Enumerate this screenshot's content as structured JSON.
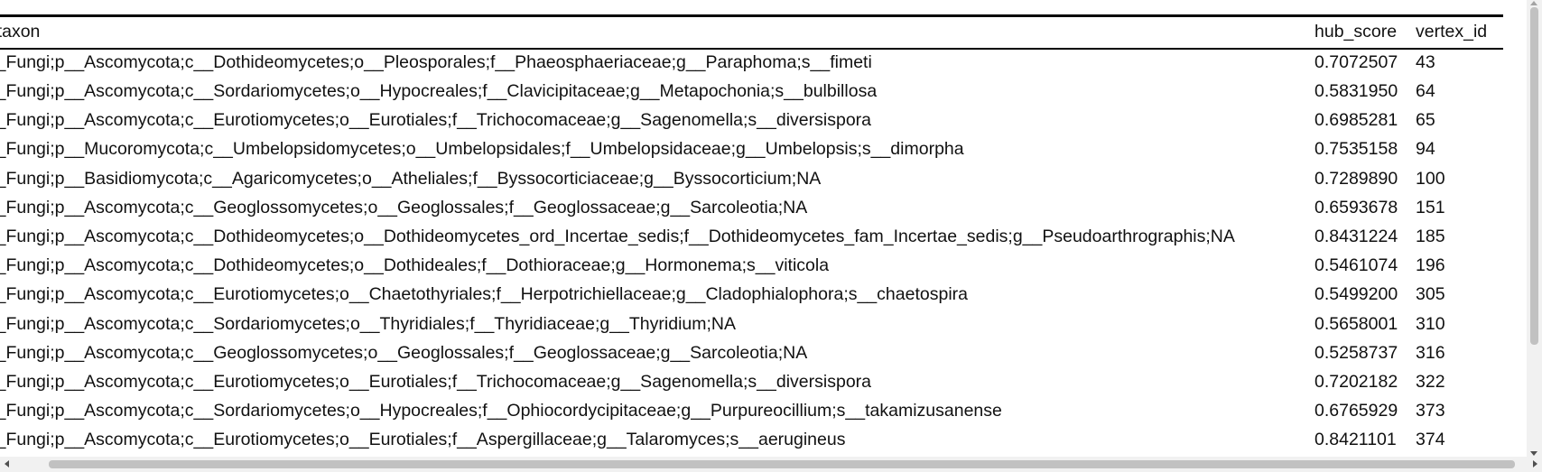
{
  "table": {
    "columns": [
      "p_taxon",
      "hub_score",
      "vertex_id"
    ],
    "rows": [
      {
        "taxon": "k__Fungi;p__Ascomycota;c__Dothideomycetes;o__Pleosporales;f__Phaeosphaeriaceae;g__Paraphoma;s__fimeti",
        "hub_score": "0.7072507",
        "vertex_id": "43"
      },
      {
        "taxon": "k__Fungi;p__Ascomycota;c__Sordariomycetes;o__Hypocreales;f__Clavicipitaceae;g__Metapochonia;s__bulbillosa",
        "hub_score": "0.5831950",
        "vertex_id": "64"
      },
      {
        "taxon": "k__Fungi;p__Ascomycota;c__Eurotiomycetes;o__Eurotiales;f__Trichocomaceae;g__Sagenomella;s__diversispora",
        "hub_score": "0.6985281",
        "vertex_id": "65"
      },
      {
        "taxon": "k__Fungi;p__Mucoromycota;c__Umbelopsidomycetes;o__Umbelopsidales;f__Umbelopsidaceae;g__Umbelopsis;s__dimorpha",
        "hub_score": "0.7535158",
        "vertex_id": "94"
      },
      {
        "taxon": "k__Fungi;p__Basidiomycota;c__Agaricomycetes;o__Atheliales;f__Byssocorticiaceae;g__Byssocorticium;NA",
        "hub_score": "0.7289890",
        "vertex_id": "100"
      },
      {
        "taxon": "k__Fungi;p__Ascomycota;c__Geoglossomycetes;o__Geoglossales;f__Geoglossaceae;g__Sarcoleotia;NA",
        "hub_score": "0.6593678",
        "vertex_id": "151"
      },
      {
        "taxon": "k__Fungi;p__Ascomycota;c__Dothideomycetes;o__Dothideomycetes_ord_Incertae_sedis;f__Dothideomycetes_fam_Incertae_sedis;g__Pseudoarthrographis;NA",
        "hub_score": "0.8431224",
        "vertex_id": "185"
      },
      {
        "taxon": "k__Fungi;p__Ascomycota;c__Dothideomycetes;o__Dothideales;f__Dothioraceae;g__Hormonema;s__viticola",
        "hub_score": "0.5461074",
        "vertex_id": "196"
      },
      {
        "taxon": "k__Fungi;p__Ascomycota;c__Eurotiomycetes;o__Chaetothyriales;f__Herpotrichiellaceae;g__Cladophialophora;s__chaetospira",
        "hub_score": "0.5499200",
        "vertex_id": "305"
      },
      {
        "taxon": "k__Fungi;p__Ascomycota;c__Sordariomycetes;o__Thyridiales;f__Thyridiaceae;g__Thyridium;NA",
        "hub_score": "0.5658001",
        "vertex_id": "310"
      },
      {
        "taxon": "k__Fungi;p__Ascomycota;c__Geoglossomycetes;o__Geoglossales;f__Geoglossaceae;g__Sarcoleotia;NA",
        "hub_score": "0.5258737",
        "vertex_id": "316"
      },
      {
        "taxon": "k__Fungi;p__Ascomycota;c__Eurotiomycetes;o__Eurotiales;f__Trichocomaceae;g__Sagenomella;s__diversispora",
        "hub_score": "0.7202182",
        "vertex_id": "322"
      },
      {
        "taxon": "k__Fungi;p__Ascomycota;c__Sordariomycetes;o__Hypocreales;f__Ophiocordycipitaceae;g__Purpureocillium;s__takamizusanense",
        "hub_score": "0.6765929",
        "vertex_id": "373"
      },
      {
        "taxon": "k__Fungi;p__Ascomycota;c__Eurotiomycetes;o__Eurotiales;f__Aspergillaceae;g__Talaromyces;s__aerugineus",
        "hub_score": "0.8421101",
        "vertex_id": "374"
      }
    ]
  },
  "icons": {
    "scroll_up": "chevron-up-icon",
    "scroll_down": "chevron-down-icon",
    "scroll_left": "chevron-left-icon",
    "scroll_right": "chevron-right-icon"
  },
  "colors": {
    "background": "#ffffff",
    "text": "#111111",
    "rule": "#000000",
    "scroll_track": "#f1f1f1",
    "scroll_thumb": "#c1c1c1"
  }
}
